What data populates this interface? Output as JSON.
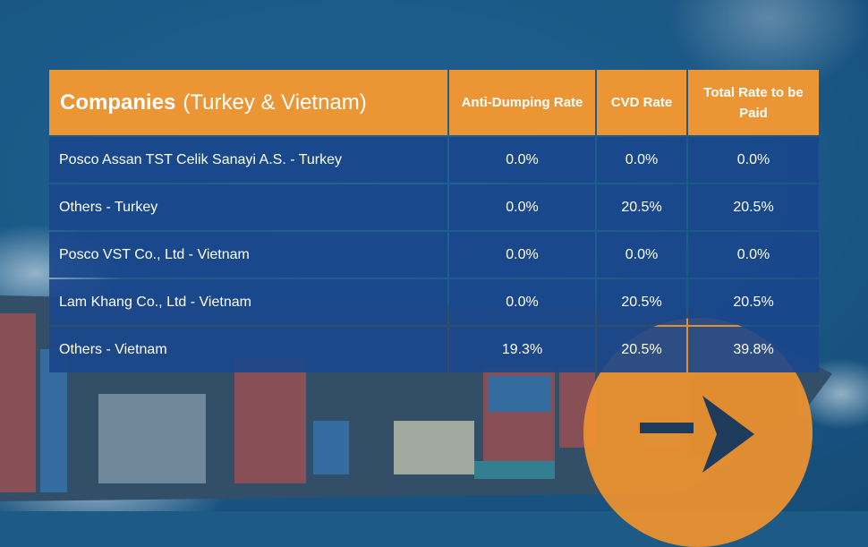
{
  "table": {
    "header": {
      "companies_bold": "Companies",
      "companies_rest": "(Turkey & Vietnam)",
      "anti_dumping": "Anti-Dumping Rate",
      "cvd": "CVD Rate",
      "total": "Total Rate to be Paid"
    },
    "rows": [
      {
        "company": "Posco Assan TST Celik Sanayi A.S. - Turkey",
        "anti_dumping": "0.0%",
        "cvd": "0.0%",
        "total": "0.0%"
      },
      {
        "company": "Others - Turkey",
        "anti_dumping": "0.0%",
        "cvd": "20.5%",
        "total": "20.5%"
      },
      {
        "company": "Posco VST Co., Ltd - Vietnam",
        "anti_dumping": "0.0%",
        "cvd": "0.0%",
        "total": "0.0%"
      },
      {
        "company": "Lam Khang Co., Ltd - Vietnam",
        "anti_dumping": "0.0%",
        "cvd": "20.5%",
        "total": "20.5%"
      },
      {
        "company": "Others - Vietnam",
        "anti_dumping": "19.3%",
        "cvd": "20.5%",
        "total": "39.8%"
      }
    ]
  },
  "colors": {
    "header_bg": "#ec9534",
    "row_bg": "#19468c",
    "accent_circle": "#f0922e",
    "arrow": "#1f3b5c"
  },
  "icons": {
    "arrow": "right-arrow-icon"
  }
}
